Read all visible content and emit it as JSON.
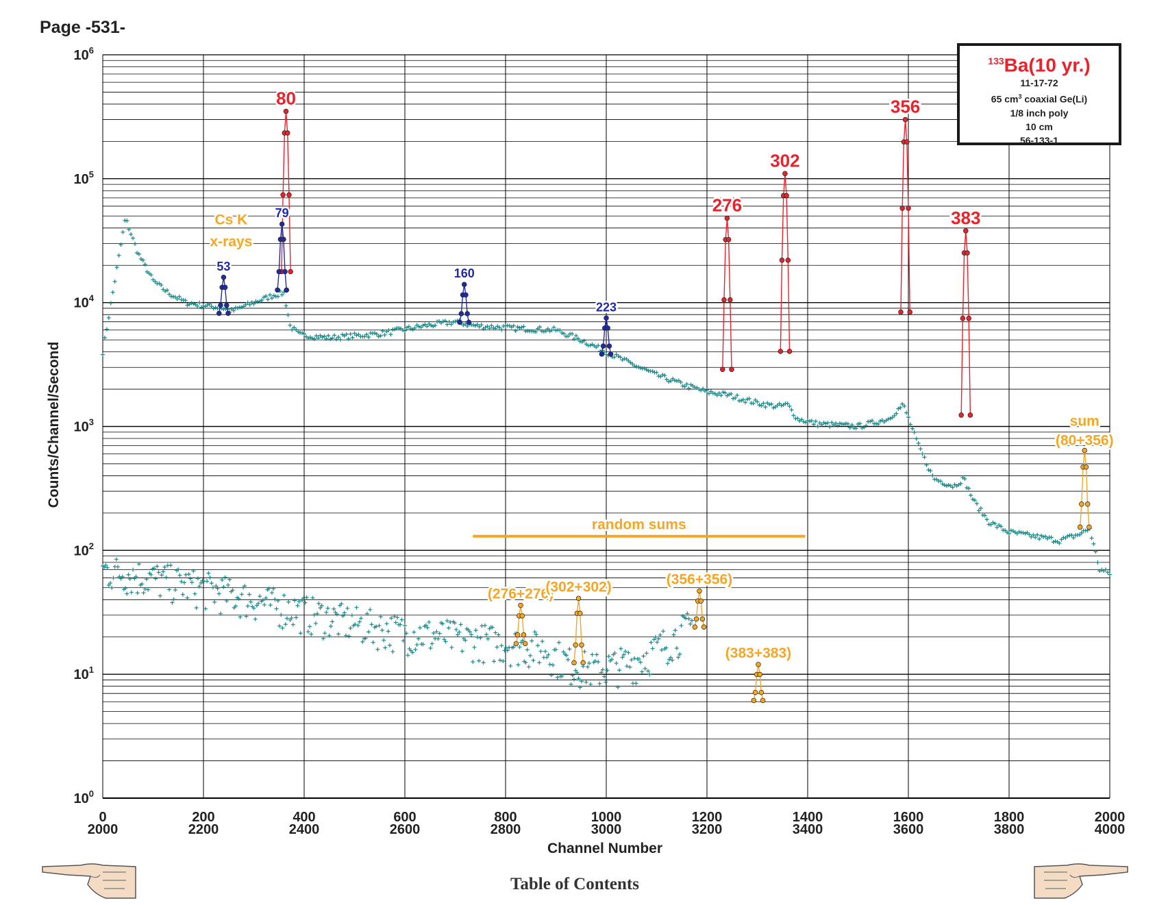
{
  "page": {
    "label": "Page -531-",
    "footer_link": "Table of Contents"
  },
  "legend_box": {
    "isotope_mass": "133",
    "isotope_name": "Ba(10 yr.)",
    "lines": [
      "11-17-72",
      "65 cm",
      "1/8 inch poly",
      "10 cm",
      "56-133-1"
    ],
    "detector_unit_sup": "3",
    "detector_rest": " coaxial Ge(Li)"
  },
  "colors": {
    "background_trace": "#1a8a8a",
    "primary_peak": "#e8232c",
    "secondary_peak": "#1f2aa8",
    "sum_peak": "#f5a623",
    "grid": "#000000"
  },
  "icons": {
    "left_nav": "pointing-hand-left-icon",
    "right_nav": "pointing-hand-right-icon"
  },
  "chart_data": {
    "type": "scatter",
    "yscale": "log",
    "ylabel": "Counts/Channel/Second",
    "xlabel": "Channel Number",
    "ylim": [
      1,
      1000000
    ],
    "xlim": [
      0,
      2000
    ],
    "y_ticks": [
      {
        "base": "10",
        "exp": "0",
        "value": 1
      },
      {
        "base": "10",
        "exp": "1",
        "value": 10
      },
      {
        "base": "10",
        "exp": "2",
        "value": 100
      },
      {
        "base": "10",
        "exp": "3",
        "value": 1000
      },
      {
        "base": "10",
        "exp": "4",
        "value": 10000
      },
      {
        "base": "10",
        "exp": "5",
        "value": 100000
      },
      {
        "base": "10",
        "exp": "6",
        "value": 1000000
      }
    ],
    "x_ticks_top": [
      "0",
      "200",
      "400",
      "600",
      "800",
      "1000",
      "1200",
      "1400",
      "1600",
      "1800",
      "2000"
    ],
    "x_ticks_bottom": [
      "2000",
      "2200",
      "2400",
      "2600",
      "2800",
      "3000",
      "3200",
      "3400",
      "3600",
      "3800",
      "4000"
    ],
    "grid": true,
    "background_spectrum": [
      [
        0,
        4000
      ],
      [
        45,
        48000
      ],
      [
        70,
        25000
      ],
      [
        100,
        15000
      ],
      [
        130,
        12000
      ],
      [
        165,
        10000
      ],
      [
        200,
        9500
      ],
      [
        240,
        9000
      ],
      [
        255,
        8500
      ],
      [
        300,
        10000
      ],
      [
        340,
        11500
      ],
      [
        360,
        12000
      ],
      [
        372,
        6500
      ],
      [
        390,
        5500
      ],
      [
        450,
        5200
      ],
      [
        550,
        5600
      ],
      [
        640,
        6500
      ],
      [
        700,
        7000
      ],
      [
        740,
        6500
      ],
      [
        820,
        6200
      ],
      [
        900,
        6000
      ],
      [
        950,
        5000
      ],
      [
        1000,
        4000
      ],
      [
        1050,
        3200
      ],
      [
        1100,
        2600
      ],
      [
        1150,
        2200
      ],
      [
        1200,
        1900
      ],
      [
        1240,
        1800
      ],
      [
        1300,
        1550
      ],
      [
        1340,
        1450
      ],
      [
        1360,
        1500
      ],
      [
        1380,
        1150
      ],
      [
        1420,
        1050
      ],
      [
        1500,
        1000
      ],
      [
        1560,
        1150
      ],
      [
        1590,
        1500
      ],
      [
        1620,
        700
      ],
      [
        1650,
        380
      ],
      [
        1690,
        330
      ],
      [
        1710,
        380
      ],
      [
        1730,
        250
      ],
      [
        1760,
        170
      ],
      [
        1800,
        140
      ],
      [
        1850,
        130
      ],
      [
        1900,
        120
      ],
      [
        1940,
        135
      ],
      [
        1960,
        150
      ],
      [
        1980,
        70
      ],
      [
        2000,
        65
      ]
    ],
    "random_sums_background": [
      [
        0,
        70
      ],
      [
        100,
        60
      ],
      [
        200,
        50
      ],
      [
        300,
        40
      ],
      [
        400,
        32
      ],
      [
        500,
        26
      ],
      [
        600,
        22
      ],
      [
        700,
        20
      ],
      [
        800,
        18
      ],
      [
        880,
        16
      ],
      [
        930,
        12
      ],
      [
        980,
        11
      ],
      [
        1060,
        13
      ],
      [
        1120,
        18
      ],
      [
        1170,
        25
      ]
    ],
    "peaks": [
      {
        "label": "80",
        "kind": "primary",
        "x": 364,
        "y": 350000
      },
      {
        "label": "276",
        "kind": "primary",
        "x": 1240,
        "y": 48000
      },
      {
        "label": "302",
        "kind": "primary",
        "x": 1355,
        "y": 110000
      },
      {
        "label": "356",
        "kind": "primary",
        "x": 1594,
        "y": 300000
      },
      {
        "label": "383",
        "kind": "primary",
        "x": 1714,
        "y": 38000
      },
      {
        "label": "79",
        "kind": "secondary",
        "x": 356,
        "y": 43000
      },
      {
        "label": "53",
        "kind": "secondary",
        "x": 240,
        "y": 16000
      },
      {
        "label": "160",
        "kind": "secondary",
        "x": 718,
        "y": 14000
      },
      {
        "label": "223",
        "kind": "secondary",
        "x": 1000,
        "y": 7500
      },
      {
        "label": "sum\n(80+356)",
        "kind": "sum",
        "x": 1950,
        "y": 640
      },
      {
        "label": "(276+276)",
        "kind": "sum",
        "x": 830,
        "y": 36
      },
      {
        "label": "(302+302)",
        "kind": "sum",
        "x": 945,
        "y": 41
      },
      {
        "label": "(356+356)",
        "kind": "sum",
        "x": 1185,
        "y": 47
      },
      {
        "label": "(383+383)",
        "kind": "sum",
        "x": 1302,
        "y": 12
      }
    ],
    "annotations": [
      {
        "text": "Cs K",
        "kind": "sum",
        "x": 155,
        "y": 12000
      },
      {
        "text": "x-rays",
        "kind": "sum",
        "x": 155,
        "y": 12000
      },
      {
        "text": "random sums",
        "kind": "sum",
        "x_start": 735,
        "x_end": 1395,
        "y": 130
      }
    ]
  }
}
